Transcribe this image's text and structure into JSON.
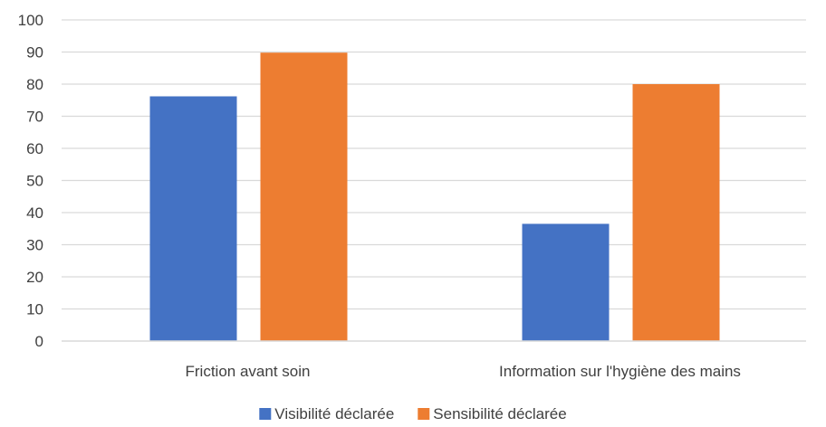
{
  "chart_data": {
    "type": "bar",
    "title": "",
    "xlabel": "",
    "ylabel": "",
    "categories": [
      "Friction avant soin",
      "Information sur l'hygiène des mains"
    ],
    "series": [
      {
        "name": "Visibilité déclarée",
        "color": "#4472C4",
        "values": [
          76.2,
          36.5
        ]
      },
      {
        "name": "Sensibilité déclarée",
        "color": "#ED7D31",
        "values": [
          89.8,
          80.0
        ]
      }
    ],
    "ylim": [
      0,
      100
    ],
    "yticks": [
      0,
      10,
      20,
      30,
      40,
      50,
      60,
      70,
      80,
      90,
      100
    ],
    "grid": true,
    "gridline_color": "#D9D9D9",
    "legend": "bottom-center"
  }
}
